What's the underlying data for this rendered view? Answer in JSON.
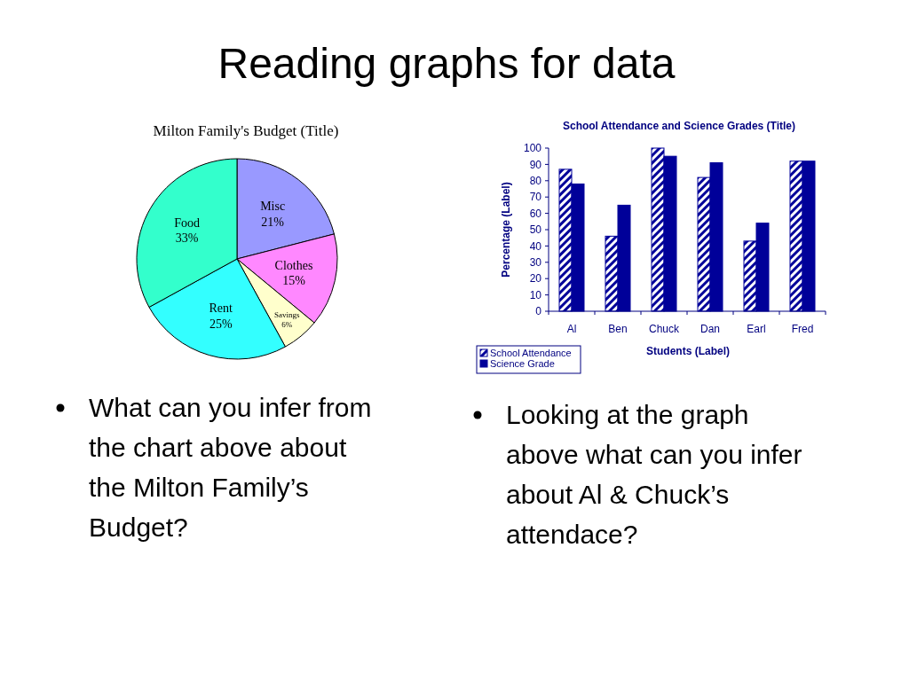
{
  "chart_data": [
    {
      "type": "pie",
      "title": "Milton Family's Budget (Title)",
      "categories": [
        "Misc",
        "Clothes",
        "Savings",
        "Rent",
        "Food"
      ],
      "values": [
        21,
        15,
        6,
        25,
        33
      ],
      "value_labels": [
        "21%",
        "15%",
        "6%",
        "25%",
        "33%"
      ],
      "colors": [
        "#9999ff",
        "#ff88ff",
        "#ffffcc",
        "#33ffff",
        "#33ffcc"
      ],
      "annotations": [
        "Reading graphs for data",
        "What can you infer from the chart above about the Milton Family’s Budget?"
      ]
    },
    {
      "type": "bar",
      "title": "School Attendance and Science Grades (Title)",
      "xlabel": "Students (Label)",
      "ylabel": "Percentage (Label)",
      "categories": [
        "Al",
        "Ben",
        "Chuck",
        "Dan",
        "Earl",
        "Fred"
      ],
      "series": [
        {
          "name": "School Attendance",
          "color": "#000099",
          "values": [
            87,
            46,
            100,
            82,
            43,
            92
          ]
        },
        {
          "name": "Science Grade",
          "color": "#000099",
          "values": [
            78,
            65,
            95,
            91,
            54,
            92
          ]
        }
      ],
      "ylim": [
        0,
        100
      ],
      "yticks": [
        0,
        10,
        20,
        30,
        40,
        50,
        60,
        70,
        80,
        90,
        100
      ],
      "grid": false,
      "legend": "bottom left",
      "annotations": [
        "Looking at the graph above what can you infer about Al & Chuck’s attendace?"
      ]
    }
  ]
}
